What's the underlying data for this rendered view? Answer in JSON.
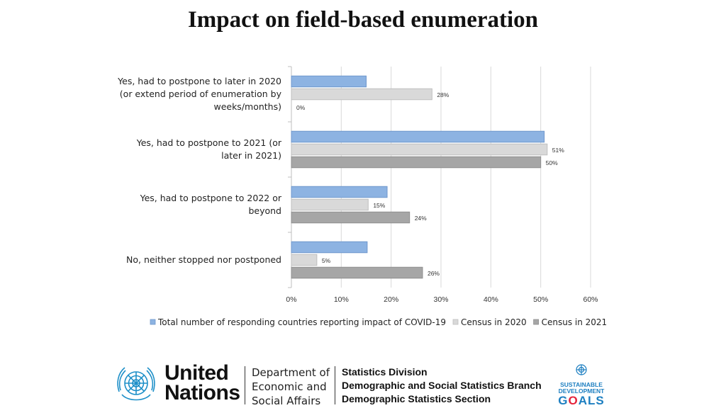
{
  "page": {
    "title": "Impact on field-based enumeration"
  },
  "chart_data": {
    "type": "bar",
    "orientation": "horizontal",
    "categories": [
      [
        "Yes, had to postpone to later in 2020",
        "(or extend period of enumeration by",
        "weeks/months)"
      ],
      [
        "Yes, had to postpone to 2021 (or",
        "later in 2021)"
      ],
      [
        "Yes, had to postpone to 2022 or",
        "beyond"
      ],
      [
        "No, neither stopped nor postponed"
      ]
    ],
    "series": [
      {
        "name": "Total number of responding countries reporting impact of COVID-19",
        "color": "#8db3e2",
        "stroke": "#6f97cc",
        "values": [
          15,
          50.7,
          19.2,
          15.2
        ],
        "labels": [
          "",
          "",
          "",
          ""
        ]
      },
      {
        "name": "Census in 2020",
        "color": "#d9d9d9",
        "stroke": "#bfbfbf",
        "values": [
          28.2,
          51.3,
          15.4,
          5.1
        ],
        "labels": [
          "28%",
          "51%",
          "15%",
          "5%"
        ]
      },
      {
        "name": "Census in 2021",
        "color": "#a6a6a6",
        "stroke": "#8f8f8f",
        "values": [
          0,
          50,
          23.7,
          26.3
        ],
        "labels": [
          "0%",
          "50%",
          "24%",
          "26%"
        ]
      }
    ],
    "xlim": [
      0,
      60
    ],
    "xticks": [
      "0%",
      "10%",
      "20%",
      "30%",
      "40%",
      "50%",
      "60%"
    ],
    "grid": true,
    "legend_position": "bottom"
  },
  "footer": {
    "un_name": [
      "United",
      "Nations"
    ],
    "department": [
      "Department of",
      "Economic and",
      "Social Affairs"
    ],
    "division": [
      "Statistics Division",
      "Demographic and Social Statistics Branch",
      "Demographic Statistics Section"
    ],
    "sdg_lines": [
      "SUSTAINABLE",
      "DEVELOPMENT"
    ],
    "sdg_goals_parts": [
      "G",
      "O",
      "ALS"
    ]
  }
}
